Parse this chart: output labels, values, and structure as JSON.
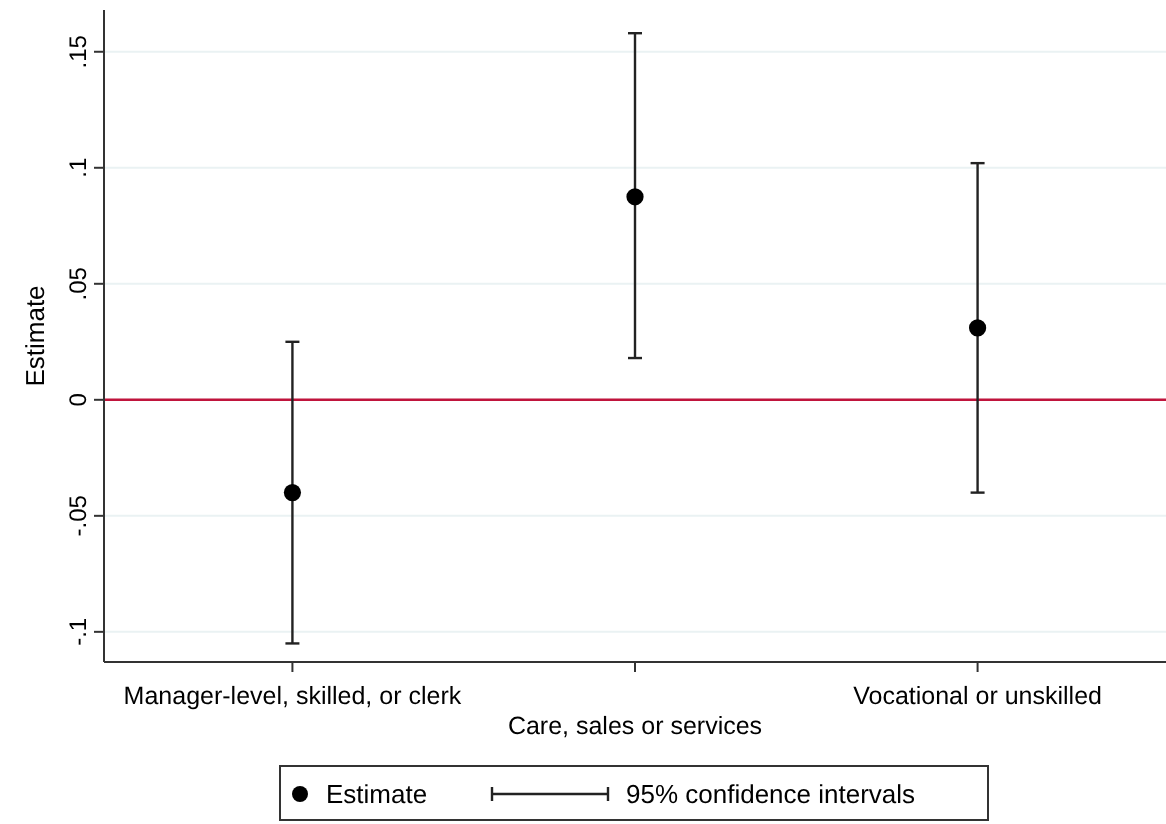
{
  "chart_data": {
    "type": "scatter",
    "ylabel": "Estimate",
    "categories": [
      "Manager-level, skilled, or clerk",
      "Care, sales or services",
      "Vocational or unskilled"
    ],
    "series": [
      {
        "name": "Estimate",
        "color": "#000000",
        "values": [
          -0.04,
          0.0875,
          0.031
        ],
        "errors": [
          [
            -0.105,
            0.025
          ],
          [
            0.018,
            0.158
          ],
          [
            -0.04,
            0.102
          ]
        ]
      }
    ],
    "ylim": [
      -0.113,
      0.168
    ],
    "yticks": [
      {
        "value": -0.1,
        "label": "-.1"
      },
      {
        "value": -0.05,
        "label": "-.05"
      },
      {
        "value": 0,
        "label": "0"
      },
      {
        "value": 0.05,
        "label": ".05"
      },
      {
        "value": 0.1,
        "label": ".1"
      },
      {
        "value": 0.15,
        "label": ".15"
      }
    ],
    "ref_lines": [
      {
        "axis": "y",
        "value": 0,
        "color": "#c0143c"
      }
    ],
    "annotations": [
      "95% confidence intervals"
    ],
    "grid": "y",
    "legend": "bottom",
    "marker": "circle"
  }
}
